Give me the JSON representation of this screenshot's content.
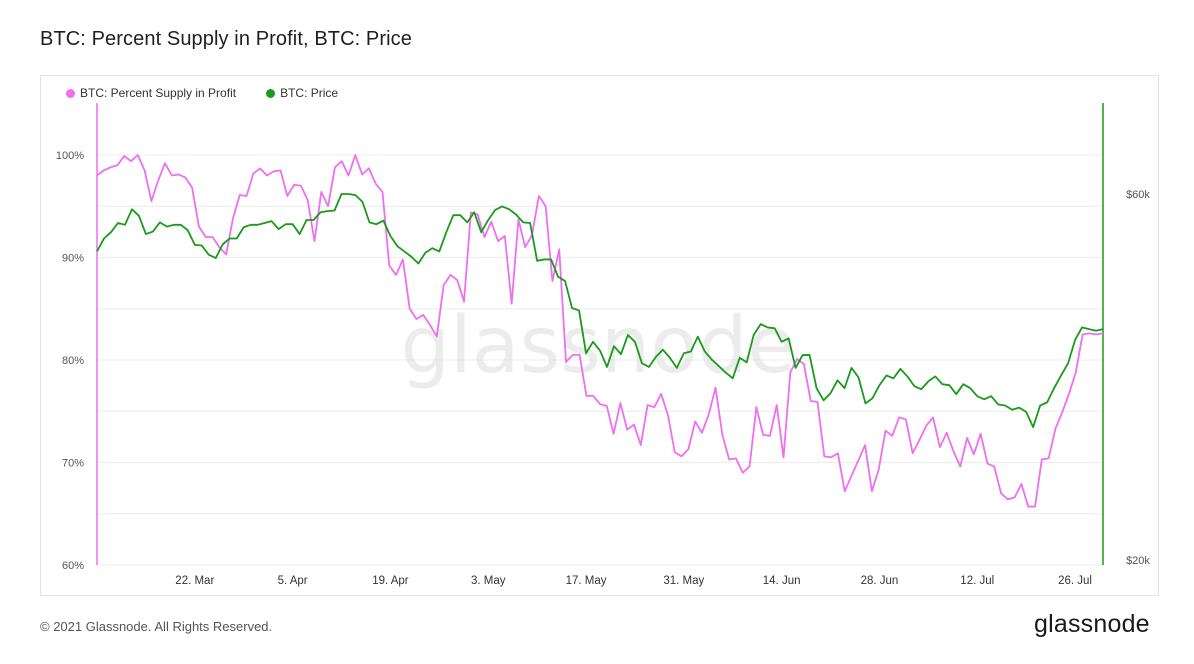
{
  "title": "BTC: Percent Supply in Profit, BTC: Price",
  "footer": {
    "copyright": "© 2021 Glassnode. All Rights Reserved.",
    "logo": "glassnode"
  },
  "watermark": "glassnode",
  "colors": {
    "supply": "#ee6ff0",
    "price": "#1a9a1a",
    "grid": "#ececec",
    "tick": "#555555"
  },
  "chart_data": {
    "type": "line",
    "title": "BTC: Percent Supply in Profit, BTC: Price",
    "x_start": "2021-03-08",
    "x_end": "2021-07-30",
    "x_tick_labels": [
      "22. Mar",
      "5. Apr",
      "19. Apr",
      "3. May",
      "17. May",
      "31. May",
      "14. Jun",
      "28. Jun",
      "12. Jul",
      "26. Jul"
    ],
    "y_left": {
      "ticks": [
        "60%",
        "70%",
        "80%",
        "90%",
        "100%"
      ],
      "ylim": [
        60,
        100
      ]
    },
    "y_right": {
      "ticks": [
        "$20k",
        "$60k"
      ],
      "scale": "log"
    },
    "legend_position": "top-left",
    "grid": true,
    "series": [
      {
        "name": "BTC: Percent Supply in Profit",
        "axis": "left",
        "unit": "%",
        "values": [
          98.0,
          98.5,
          98.8,
          99.0,
          99.9,
          99.4,
          100.0,
          98.5,
          95.5,
          97.5,
          99.2,
          98.0,
          98.1,
          97.8,
          96.8,
          93.0,
          92.0,
          92.0,
          91.0,
          90.3,
          93.8,
          96.1,
          96.0,
          98.2,
          98.7,
          98.0,
          98.4,
          98.5,
          96.0,
          97.1,
          97.0,
          95.6,
          91.6,
          96.4,
          95.0,
          98.8,
          99.4,
          98.0,
          100.0,
          98.1,
          98.7,
          97.2,
          96.4,
          89.2,
          88.3,
          89.8,
          85.0,
          84.0,
          84.4,
          83.4,
          82.3,
          87.3,
          88.3,
          87.8,
          85.7,
          94.4,
          94.2,
          92.0,
          93.5,
          91.6,
          92.1,
          85.5,
          93.7,
          91.0,
          92.2,
          96.0,
          95.0,
          87.7,
          90.8,
          79.8,
          80.5,
          80.5,
          76.5,
          76.5,
          75.7,
          75.5,
          72.8,
          75.8,
          73.2,
          73.7,
          71.7,
          75.6,
          75.4,
          76.7,
          74.6,
          71.0,
          70.6,
          71.3,
          74.0,
          72.9,
          74.7,
          77.3,
          72.7,
          70.3,
          70.4,
          69.0,
          69.6,
          75.4,
          72.7,
          72.6,
          75.6,
          70.5,
          78.8,
          80.1,
          79.6,
          76.0,
          75.9,
          70.6,
          70.5,
          70.9,
          67.2,
          68.7,
          70.2,
          71.7,
          67.2,
          69.3,
          73.1,
          72.6,
          74.4,
          74.2,
          70.9,
          72.2,
          73.6,
          74.4,
          71.5,
          72.9,
          71.1,
          69.6,
          72.4,
          70.8,
          72.8,
          69.9,
          69.6,
          67.0,
          66.4,
          66.6,
          67.9,
          65.7,
          65.7,
          70.3,
          70.4,
          73.3,
          74.9,
          76.7,
          78.8,
          82.5,
          82.6,
          82.5,
          82.6
        ]
      },
      {
        "name": "BTC: Price",
        "axis": "right",
        "unit": "USD",
        "values": [
          50500,
          52500,
          53500,
          55000,
          54700,
          57300,
          56200,
          53200,
          53600,
          55100,
          54400,
          54700,
          54700,
          53800,
          51500,
          51400,
          50000,
          49500,
          51600,
          52500,
          52500,
          54300,
          54700,
          54700,
          55000,
          55300,
          54000,
          54800,
          54800,
          53200,
          55500,
          55500,
          56800,
          57000,
          57100,
          60000,
          60000,
          59800,
          58600,
          55100,
          54800,
          55400,
          52900,
          51300,
          50500,
          49700,
          48700,
          50300,
          51000,
          50500,
          53500,
          56300,
          56300,
          55100,
          56800,
          53500,
          55500,
          57200,
          57800,
          57300,
          56400,
          55100,
          55000,
          49100,
          49300,
          49300,
          46800,
          46200,
          42600,
          42300,
          37200,
          38500,
          37500,
          35700,
          38000,
          37100,
          39300,
          38500,
          36100,
          35700,
          36800,
          37600,
          36700,
          35600,
          37200,
          37400,
          39100,
          37400,
          36500,
          35800,
          35100,
          34500,
          36700,
          36200,
          39300,
          40600,
          40200,
          40100,
          38500,
          38900,
          35600,
          37000,
          37000,
          33500,
          32300,
          33000,
          34300,
          33500,
          35600,
          34600,
          32000,
          32500,
          33800,
          34800,
          34500,
          35500,
          34700,
          33700,
          33400,
          34200,
          34700,
          33900,
          33800,
          32900,
          33900,
          33500,
          32700,
          32400,
          32700,
          31900,
          31800,
          31400,
          31600,
          31200,
          29800,
          31800,
          32100,
          33500,
          34800,
          36100,
          38700,
          40200,
          40000,
          39800,
          40000
        ]
      }
    ]
  }
}
